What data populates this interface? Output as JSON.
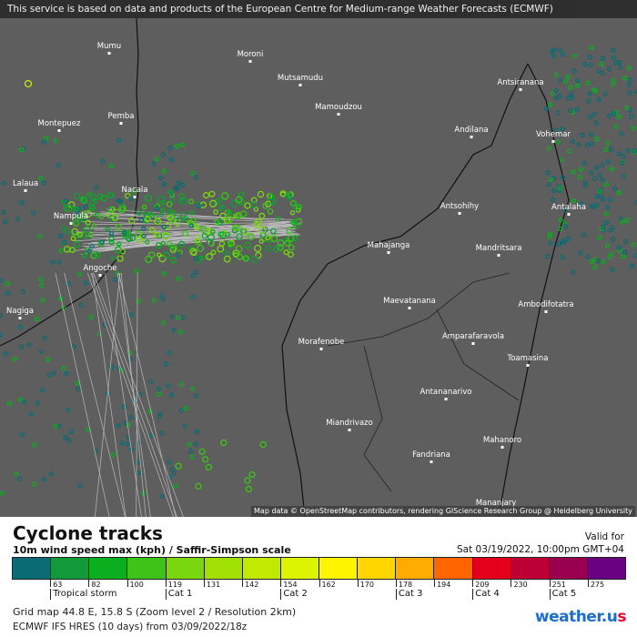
{
  "banner": "This service is based on data and products of the European Centre for Medium-range Weather Forecasts (ECMWF)",
  "map": {
    "credit": "Map data © OpenStreetMap contributors, rendering GIScience Research Group @ Heidelberg University",
    "background": "#5e5e5e",
    "places": [
      {
        "name": "Mumu"
      },
      {
        "name": "Moroni"
      },
      {
        "name": "Mutsamudu"
      },
      {
        "name": "Mamoudzou"
      },
      {
        "name": "Pemba"
      },
      {
        "name": "Montepuez"
      },
      {
        "name": "Antsiranana"
      },
      {
        "name": "Andilana"
      },
      {
        "name": "Vohemar"
      },
      {
        "name": "Lalaua"
      },
      {
        "name": "Nacala"
      },
      {
        "name": "Nampula"
      },
      {
        "name": "Antsohihy"
      },
      {
        "name": "Antalaha"
      },
      {
        "name": "Mahajanga"
      },
      {
        "name": "Mandritsara"
      },
      {
        "name": "Angoche"
      },
      {
        "name": "Maevatanana"
      },
      {
        "name": "Ambodifotatra"
      },
      {
        "name": "Nagiga"
      },
      {
        "name": "Amparafaravola"
      },
      {
        "name": "Morafenobe"
      },
      {
        "name": "Toamasina"
      },
      {
        "name": "Antananarivo"
      },
      {
        "name": "Miandrivazo"
      },
      {
        "name": "Mahanoro"
      },
      {
        "name": "Fandriana"
      },
      {
        "name": "Mananjary"
      }
    ]
  },
  "legend": {
    "title": "Cyclone tracks",
    "subtitle": "10m wind speed max (kph) / Saffir-Simpson scale",
    "valid_label": "Valid for",
    "valid_value": "Sat 03/19/2022, 10:00pm GMT+04",
    "colors": [
      "#0b6b74",
      "#129a3a",
      "#0aae1e",
      "#3ec418",
      "#7ad60e",
      "#a0e002",
      "#c0eb00",
      "#dcf400",
      "#fff500",
      "#ffd600",
      "#ffab00",
      "#ff6500",
      "#e4001a",
      "#bc0036",
      "#98004f",
      "#6a0082"
    ],
    "ticks": [
      "63",
      "82",
      "100",
      "119",
      "131",
      "142",
      "154",
      "162",
      "170",
      "178",
      "194",
      "209",
      "230",
      "251",
      "275"
    ],
    "categories": [
      {
        "label": "Tropical storm",
        "at": 1
      },
      {
        "label": "Cat 1",
        "at": 4
      },
      {
        "label": "Cat 2",
        "at": 7
      },
      {
        "label": "Cat 3",
        "at": 10
      },
      {
        "label": "Cat 4",
        "at": 12
      },
      {
        "label": "Cat 5",
        "at": 14
      }
    ]
  },
  "footer": {
    "grid": "Grid map 44.8 E, 15.8 S (Zoom level 2 / Resolution 2km)",
    "model": "ECMWF IFS HRES (10 days) from 03/09/2022/18z",
    "logo": "weather.us"
  }
}
